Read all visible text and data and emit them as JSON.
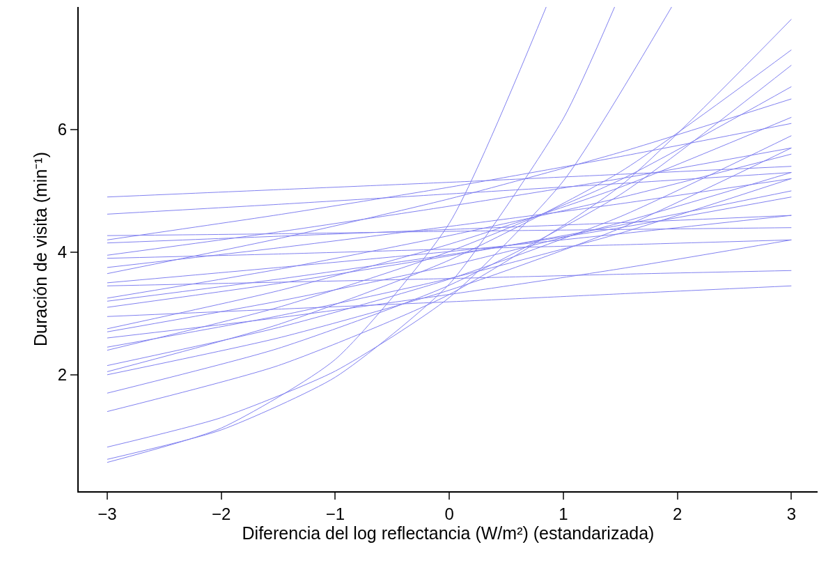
{
  "chart_data": {
    "type": "line",
    "xlabel": "Diferencia del log reflectancia (W/m²) (estandarizada)",
    "ylabel": "Duración de visita (min⁻¹)",
    "x": [
      -3,
      -1.5,
      0,
      1.5,
      3
    ],
    "xlim": [
      -3.25,
      3.23
    ],
    "xticks": [
      -3,
      -2,
      -1,
      0,
      1,
      2,
      3
    ],
    "ylim": [
      0.1,
      8.0
    ],
    "yticks": [
      2,
      4,
      6
    ],
    "marker": "none",
    "line_style": "solid",
    "series": [
      {
        "color": "#8080f0",
        "values": [
          4.9,
          5.02,
          5.14,
          5.27,
          5.4
        ]
      },
      {
        "color": "#8080f0",
        "values": [
          4.62,
          4.78,
          4.95,
          5.12,
          5.3
        ]
      },
      {
        "color": "#8080f0",
        "values": [
          4.27,
          4.3,
          4.34,
          4.37,
          4.4
        ]
      },
      {
        "color": "#8080f0",
        "values": [
          4.2,
          4.61,
          5.06,
          5.56,
          6.1
        ]
      },
      {
        "color": "#8080f0",
        "values": [
          4.15,
          4.26,
          4.37,
          4.48,
          4.6
        ]
      },
      {
        "color": "#8080f0",
        "values": [
          3.95,
          4.33,
          4.75,
          5.2,
          5.7
        ]
      },
      {
        "color": "#8080f0",
        "values": [
          3.9,
          3.97,
          4.05,
          4.12,
          4.2
        ]
      },
      {
        "color": "#8080f0",
        "values": [
          3.75,
          4.07,
          4.42,
          4.79,
          5.2
        ]
      },
      {
        "color": "#8080f0",
        "values": [
          3.65,
          4.22,
          4.87,
          5.63,
          6.5
        ]
      },
      {
        "color": "#8080f0",
        "values": [
          3.5,
          3.75,
          4.01,
          4.3,
          4.6
        ]
      },
      {
        "color": "#8080f0",
        "values": [
          3.45,
          3.51,
          3.57,
          3.64,
          3.7
        ]
      },
      {
        "color": "#8080f0",
        "values": [
          3.25,
          3.72,
          4.27,
          4.89,
          5.6
        ]
      },
      {
        "color": "#8080f0",
        "values": [
          3.2,
          3.56,
          3.96,
          4.4,
          4.9
        ]
      },
      {
        "color": "#8080f0",
        "values": [
          3.1,
          3.49,
          3.94,
          4.44,
          5.0
        ]
      },
      {
        "color": "#8080f0",
        "values": [
          2.95,
          3.07,
          3.19,
          3.32,
          3.45
        ]
      },
      {
        "color": "#8080f0",
        "values": [
          2.75,
          3.37,
          4.13,
          5.06,
          6.2
        ]
      },
      {
        "color": "#8080f0",
        "values": [
          2.7,
          3.2,
          3.78,
          4.48,
          5.3
        ]
      },
      {
        "color": "#8080f0",
        "values": [
          2.6,
          2.93,
          3.31,
          3.73,
          4.2
        ]
      },
      {
        "color": "#8080f0",
        "values": [
          2.45,
          2.96,
          3.57,
          4.31,
          5.2
        ]
      },
      {
        "color": "#8080f0",
        "values": [
          2.4,
          3.1,
          4.01,
          5.18,
          6.7
        ]
      },
      {
        "color": "#8080f0",
        "values": [
          2.15,
          2.77,
          3.56,
          4.58,
          5.9
        ]
      },
      {
        "color": "#8080f0",
        "values": [
          2.05,
          2.82,
          3.87,
          5.31,
          7.3
        ]
      },
      {
        "color": "#8080f0",
        "values": [
          2.0,
          2.6,
          3.38,
          4.39,
          5.7
        ]
      },
      {
        "color": "#8080f0",
        "values": [
          1.7,
          2.43,
          3.46,
          4.94,
          7.05
        ]
      },
      {
        "color": "#8080f0",
        "values": [
          1.4,
          2.15,
          3.31,
          5.08,
          7.8
        ]
      },
      {
        "color": "#8080f0",
        "x": [
          -3,
          -2,
          -1,
          0,
          0.85
        ],
        "values": [
          0.57,
          1.13,
          2.25,
          4.47,
          8.0
        ]
      },
      {
        "color": "#8080f0",
        "x": [
          -3,
          -2,
          -1,
          0,
          1,
          1.45
        ],
        "values": [
          0.62,
          1.1,
          1.96,
          3.48,
          6.18,
          8.0
        ]
      },
      {
        "color": "#8080f0",
        "x": [
          -3,
          -2,
          -1,
          0,
          1,
          1.95
        ],
        "values": [
          0.82,
          1.3,
          2.06,
          3.26,
          5.16,
          8.0
        ]
      }
    ]
  }
}
